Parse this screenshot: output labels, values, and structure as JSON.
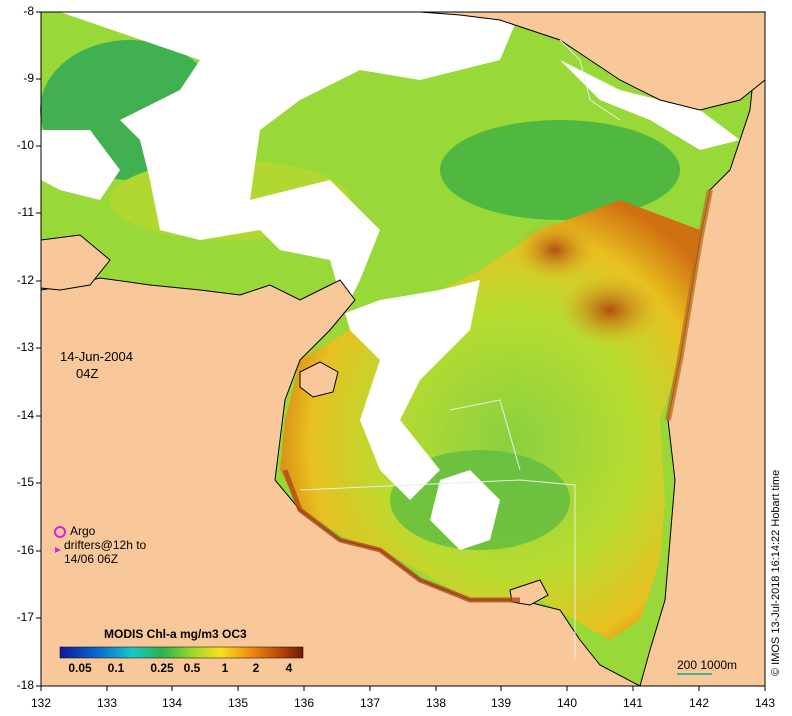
{
  "map": {
    "longitude_ticks": [
      "132",
      "133",
      "134",
      "135",
      "136",
      "137",
      "138",
      "139",
      "140",
      "141",
      "142",
      "143"
    ],
    "latitude_ticks": [
      "-8",
      "-9",
      "-10",
      "-11",
      "-12",
      "-13",
      "-14",
      "-15",
      "-16",
      "-17",
      "-18"
    ],
    "date": "14-Jun-2004",
    "time": "04Z",
    "colors": {
      "land": "#f9c89a",
      "cloud": "#ffffff",
      "coast": "#000000"
    }
  },
  "legend": {
    "argo_label": "Argo",
    "drifters_label": "drifters@12h to",
    "drifters_date": "14/06 06Z",
    "argo_color": "#e01ce0"
  },
  "colorbar": {
    "title": "MODIS Chl-a mg/m3 OC3",
    "ticks": [
      "0.05",
      "0.1",
      "0.25",
      "0.5",
      "1",
      "2",
      "4"
    ],
    "colors": [
      "#0a1a9a",
      "#0a66d0",
      "#18c8c8",
      "#28b44a",
      "#a0d828",
      "#f8e020",
      "#f09010",
      "#c04808",
      "#701808"
    ]
  },
  "scale_bar": {
    "label": "200  1000m"
  },
  "credit": "© IMOS 13-Jul-2018 16:14:22 Hobart time"
}
